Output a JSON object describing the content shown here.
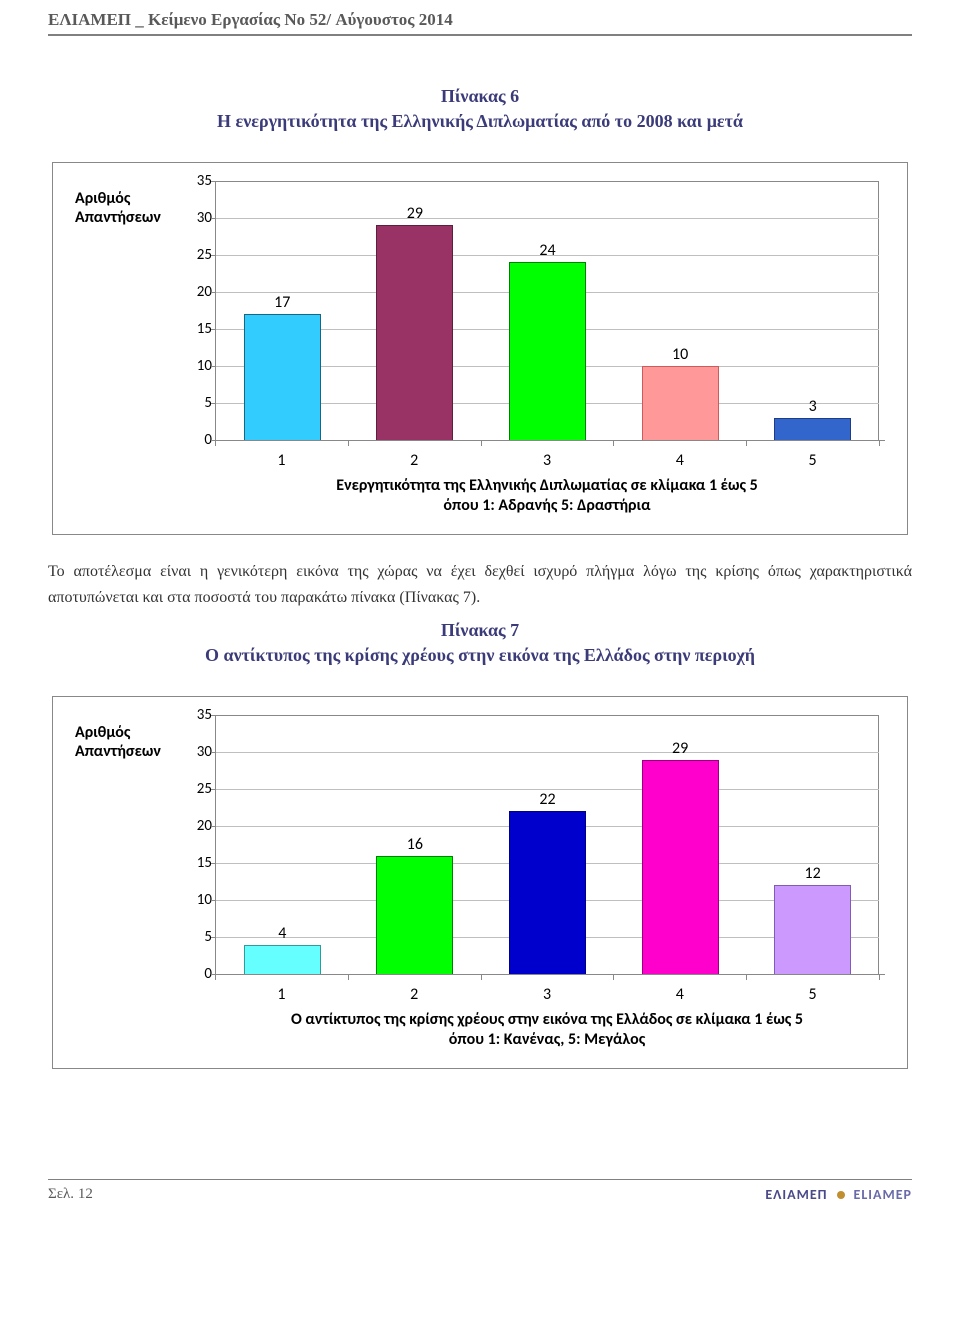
{
  "header": {
    "text": "ΕΛΙΑΜΕΠ _ Κείμενο Εργασίας No 52/ Αύγουστος 2014"
  },
  "section1": {
    "title": "Πίνακας 6",
    "subtitle": "Η ενεργητικότητα της Ελληνικής Διπλωματίας από το 2008 και μετά"
  },
  "chart1": {
    "y_axis_title_line1": "Αριθμός",
    "y_axis_title_line2": "Απαντήσεων",
    "categories": [
      "1",
      "2",
      "3",
      "4",
      "5"
    ],
    "values": [
      17,
      29,
      24,
      10,
      3
    ],
    "bar_fill_colors": [
      "#33ccff",
      "#993366",
      "#00ff00",
      "#ff9999",
      "#3366cc"
    ],
    "bar_border_colors": [
      "#1a6680",
      "#5c1f3d",
      "#008000",
      "#cc5c5c",
      "#1f3d80"
    ],
    "ylim": [
      0,
      35
    ],
    "ytick_step": 5,
    "grid_color": "#bfbfbf",
    "border_color": "#888888",
    "background_color": "#ffffff",
    "bar_width": 0.58,
    "x_title_line1": "Ενεργητικότητα της Ελληνικής Διπλωματίας σε κλίμακα 1 έως 5",
    "x_title_line2": "όπου 1: Αδρανής 5: Δραστήρια",
    "label_fontsize": 15,
    "tick_fontsize": 15
  },
  "body1": {
    "text": "Το αποτέλεσμα είναι η γενικότερη εικόνα της χώρας να έχει δεχθεί ισχυρό πλήγμα λόγω της κρίσης όπως χαρακτηριστικά αποτυπώνεται και στα ποσοστά του παρακάτω πίνακα (Πίνακας 7)."
  },
  "section2": {
    "title": "Πίνακας 7",
    "subtitle": "Ο αντίκτυπος της κρίσης χρέους στην εικόνα της Ελλάδος στην περιοχή"
  },
  "chart2": {
    "y_axis_title_line1": "Αριθμός",
    "y_axis_title_line2": "Απαντήσεων",
    "categories": [
      "1",
      "2",
      "3",
      "4",
      "5"
    ],
    "values": [
      4,
      16,
      22,
      29,
      12
    ],
    "bar_fill_colors": [
      "#66ffff",
      "#00ff00",
      "#0000cc",
      "#ff00cc",
      "#cc99ff"
    ],
    "bar_border_colors": [
      "#339999",
      "#008000",
      "#000080",
      "#990080",
      "#805cb3"
    ],
    "ylim": [
      0,
      35
    ],
    "ytick_step": 5,
    "grid_color": "#bfbfbf",
    "border_color": "#888888",
    "background_color": "#ffffff",
    "bar_width": 0.58,
    "x_title_line1": "Ο αντίκτυπος της κρίσης χρέους στην εικόνα της Ελλάδος σε κλίμακα 1 έως 5",
    "x_title_line2": "όπου 1: Κανένας, 5: Μεγάλος",
    "label_fontsize": 15,
    "tick_fontsize": 15
  },
  "footer": {
    "page_label": "Σελ.",
    "page_number": "12",
    "brand_gr": "ΕΛΙΑΜΕΠ",
    "brand_en": "ELIAMEP"
  }
}
